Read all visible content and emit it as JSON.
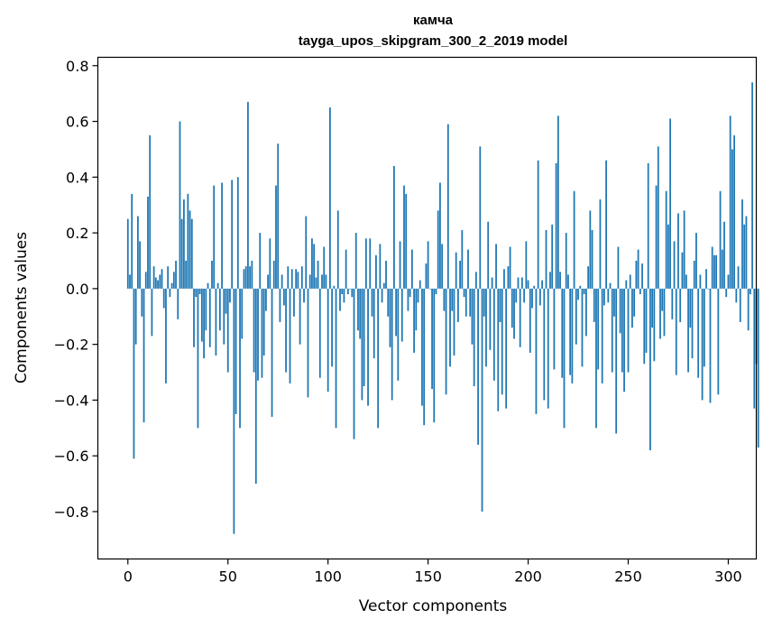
{
  "chart_data": {
    "type": "bar",
    "title": "камча",
    "subtitle": "tayga_upos_skipgram_300_2_2019 model",
    "xlabel": "Vector components",
    "ylabel": "Components values",
    "xlim": [
      -15,
      314
    ],
    "ylim": [
      -0.97,
      0.83
    ],
    "xticks": [
      0,
      50,
      100,
      150,
      200,
      250,
      300
    ],
    "xtick_labels": [
      "0",
      "50",
      "100",
      "150",
      "200",
      "250",
      "300"
    ],
    "yticks": [
      -0.8,
      -0.6,
      -0.4,
      -0.2,
      0.0,
      0.2,
      0.4,
      0.6,
      0.8
    ],
    "ytick_labels": [
      "−0.8",
      "−0.6",
      "−0.4",
      "−0.2",
      "0.0",
      "0.2",
      "0.4",
      "0.6",
      "0.8"
    ],
    "bar_color": "#1f77b4",
    "grid": false,
    "values": [
      0.25,
      0.05,
      0.34,
      -0.61,
      -0.2,
      0.26,
      0.17,
      -0.1,
      -0.48,
      0.06,
      0.33,
      0.55,
      -0.17,
      0.08,
      0.04,
      0.03,
      0.05,
      0.07,
      -0.07,
      -0.34,
      0.08,
      -0.03,
      0.02,
      0.06,
      0.1,
      -0.11,
      0.6,
      0.25,
      0.32,
      0.1,
      0.34,
      0.28,
      0.25,
      -0.21,
      -0.03,
      -0.5,
      -0.02,
      -0.19,
      -0.25,
      -0.15,
      0.02,
      -0.21,
      0.1,
      0.37,
      -0.24,
      0.02,
      -0.15,
      0.38,
      -0.2,
      -0.09,
      -0.3,
      -0.05,
      0.39,
      -0.88,
      -0.45,
      0.4,
      -0.5,
      -0.18,
      0.07,
      0.08,
      0.67,
      0.08,
      0.1,
      -0.3,
      -0.7,
      -0.33,
      0.2,
      -0.32,
      -0.24,
      -0.08,
      0.05,
      0.18,
      -0.46,
      0.1,
      0.37,
      0.52,
      -0.12,
      0.05,
      -0.06,
      -0.3,
      0.08,
      -0.34,
      0.07,
      -0.1,
      0.07,
      0.06,
      -0.2,
      0.08,
      -0.05,
      0.26,
      -0.39,
      0.05,
      0.18,
      0.16,
      0.04,
      0.1,
      -0.32,
      0.05,
      0.15,
      0.05,
      -0.37,
      0.65,
      -0.28,
      0.01,
      -0.5,
      0.28,
      -0.08,
      -0.02,
      -0.05,
      0.14,
      -0.02,
      0.0,
      -0.03,
      -0.54,
      0.2,
      -0.15,
      -0.18,
      -0.4,
      -0.35,
      0.18,
      -0.42,
      0.18,
      -0.1,
      -0.25,
      0.12,
      -0.5,
      0.16,
      -0.05,
      0.02,
      0.1,
      -0.1,
      -0.21,
      -0.4,
      0.44,
      -0.17,
      -0.33,
      0.17,
      -0.19,
      0.37,
      0.34,
      -0.08,
      -0.03,
      0.14,
      -0.23,
      -0.15,
      -0.05,
      0.03,
      -0.42,
      -0.49,
      0.09,
      0.17,
      0.0,
      -0.36,
      -0.48,
      -0.02,
      0.28,
      0.38,
      0.16,
      -0.08,
      -0.38,
      0.59,
      -0.28,
      -0.08,
      -0.24,
      0.13,
      -0.12,
      0.1,
      0.21,
      -0.03,
      -0.1,
      0.14,
      -0.1,
      -0.2,
      -0.35,
      0.06,
      -0.56,
      0.51,
      -0.8,
      -0.1,
      -0.28,
      0.24,
      -0.22,
      0.04,
      -0.33,
      0.16,
      -0.44,
      -0.12,
      -0.38,
      0.07,
      -0.43,
      0.08,
      0.15,
      -0.14,
      -0.18,
      -0.05,
      0.04,
      -0.21,
      0.04,
      -0.05,
      0.17,
      0.03,
      -0.23,
      -0.07,
      0.01,
      -0.45,
      0.46,
      -0.06,
      0.03,
      -0.4,
      0.21,
      -0.43,
      0.06,
      0.23,
      -0.29,
      0.45,
      0.62,
      0.06,
      -0.32,
      -0.5,
      0.2,
      0.05,
      -0.31,
      -0.34,
      0.35,
      -0.2,
      -0.04,
      0.01,
      -0.28,
      -0.02,
      -0.17,
      0.08,
      0.28,
      0.21,
      -0.12,
      -0.5,
      -0.29,
      0.32,
      -0.34,
      -0.06,
      0.46,
      -0.05,
      0.02,
      -0.3,
      -0.1,
      -0.52,
      0.15,
      -0.16,
      -0.3,
      -0.37,
      0.03,
      -0.3,
      0.05,
      -0.14,
      -0.1,
      0.1,
      0.14,
      -0.02,
      0.09,
      -0.27,
      -0.23,
      0.45,
      -0.58,
      -0.14,
      -0.26,
      0.37,
      0.51,
      -0.18,
      -0.08,
      -0.17,
      0.35,
      0.23,
      0.61,
      -0.11,
      0.17,
      -0.31,
      0.27,
      -0.12,
      0.13,
      0.28,
      0.05,
      -0.3,
      -0.14,
      -0.25,
      0.1,
      0.2,
      -0.32,
      0.05,
      -0.4,
      -0.28,
      0.07,
      0.0,
      -0.41,
      0.15,
      0.12,
      0.12,
      -0.38,
      0.35,
      0.14,
      0.24,
      -0.03,
      0.05,
      0.62,
      0.5,
      0.55,
      -0.05,
      0.08,
      -0.12,
      0.32,
      0.23,
      0.26,
      -0.15,
      -0.02,
      0.74,
      -0.43,
      -0.27,
      -0.57
    ]
  }
}
